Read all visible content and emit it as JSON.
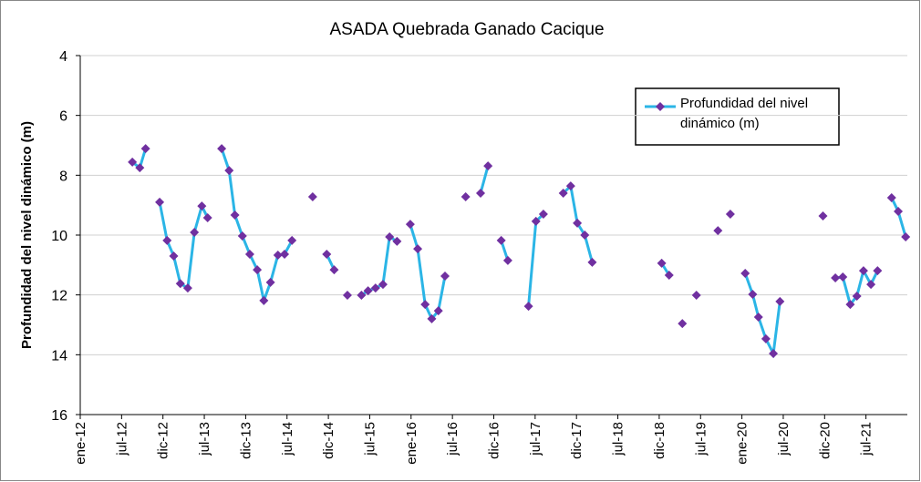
{
  "chart_data": {
    "type": "line",
    "title": "ASADA Quebrada Ganado Cacique",
    "y_label": "Profundidad del nivel dinámico (m)",
    "ylim": [
      16,
      4
    ],
    "yticks": [
      4,
      6,
      8,
      10,
      12,
      14,
      16
    ],
    "xlim": [
      2012,
      2022
    ],
    "xticks": [
      {
        "value": 2012,
        "label": "ene-12"
      },
      {
        "value": 2012.5,
        "label": "jul-12"
      },
      {
        "value": 2013,
        "label": "dic-12"
      },
      {
        "value": 2013.5,
        "label": "jul-13"
      },
      {
        "value": 2014,
        "label": "dic-13"
      },
      {
        "value": 2014.5,
        "label": "jul-14"
      },
      {
        "value": 2015,
        "label": "dic-14"
      },
      {
        "value": 2015.5,
        "label": "jul-15"
      },
      {
        "value": 2016,
        "label": "ene-16"
      },
      {
        "value": 2016.5,
        "label": "jul-16"
      },
      {
        "value": 2017,
        "label": "dic-16"
      },
      {
        "value": 2017.5,
        "label": "jul-17"
      },
      {
        "value": 2018,
        "label": "dic-17"
      },
      {
        "value": 2018.5,
        "label": "jul-18"
      },
      {
        "value": 2019,
        "label": "dic-18"
      },
      {
        "value": 2019.5,
        "label": "jul-19"
      },
      {
        "value": 2020,
        "label": "ene-20"
      },
      {
        "value": 2020.5,
        "label": "jul-20"
      },
      {
        "value": 2021,
        "label": "dic-20"
      },
      {
        "value": 2021.5,
        "label": "jul-21"
      }
    ],
    "grid": true,
    "legend": "top-right",
    "x": [
      2012.63,
      2012.72,
      2012.79,
      null,
      2012.96,
      2013.05,
      2013.13,
      2013.21,
      2013.3,
      2013.38,
      2013.47,
      2013.54,
      null,
      2013.71,
      2013.8,
      2013.87,
      2013.96,
      2014.05,
      2014.14,
      2014.22,
      2014.3,
      2014.39,
      2014.47,
      2014.56,
      null,
      2014.81,
      null,
      2014.98,
      2015.07,
      null,
      2015.23,
      null,
      2015.4,
      2015.48,
      2015.57,
      2015.66,
      2015.74,
      2015.83,
      null,
      2015.99,
      2016.08,
      2016.17,
      2016.25,
      2016.33,
      2016.41,
      null,
      2016.66,
      null,
      2016.84,
      2016.93,
      null,
      2017.09,
      2017.17,
      null,
      2017.42,
      2017.51,
      2017.6,
      null,
      2017.84,
      2017.93,
      2018.01,
      2018.1,
      2018.19,
      null,
      2019.03,
      2019.12,
      null,
      2019.28,
      null,
      2019.45,
      null,
      2019.71,
      null,
      2019.86,
      null,
      2020.04,
      2020.13,
      2020.2,
      2020.29,
      2020.38,
      2020.46,
      null,
      2020.98,
      null,
      2021.13,
      2021.22,
      2021.31,
      2021.39,
      2021.47,
      2021.56,
      2021.64,
      null,
      2021.81,
      2021.89,
      2021.98
    ],
    "series": [
      {
        "name": "Profundidad del nivel dinámico (m)",
        "color": "#2bb5e6",
        "marker_color": "#7030a0",
        "values": [
          7.56,
          7.75,
          7.11,
          null,
          8.9,
          10.18,
          10.7,
          11.62,
          11.77,
          9.91,
          9.03,
          9.42,
          null,
          7.11,
          7.84,
          9.33,
          10.03,
          10.64,
          11.16,
          12.19,
          11.58,
          10.67,
          10.64,
          10.18,
          null,
          8.72,
          null,
          10.64,
          11.16,
          null,
          12.01,
          null,
          12.01,
          11.86,
          11.77,
          11.65,
          10.06,
          10.21,
          null,
          9.64,
          10.46,
          12.32,
          12.8,
          12.53,
          11.37,
          null,
          8.72,
          null,
          8.6,
          7.69,
          null,
          10.18,
          10.85,
          null,
          12.38,
          9.54,
          9.3,
          null,
          8.6,
          8.36,
          9.6,
          10.0,
          10.91,
          null,
          10.94,
          11.34,
          null,
          12.96,
          null,
          12.01,
          null,
          9.85,
          null,
          9.3,
          null,
          11.28,
          11.98,
          12.74,
          13.47,
          13.96,
          12.22,
          null,
          9.36,
          null,
          11.43,
          11.4,
          12.32,
          12.04,
          11.19,
          11.65,
          11.19,
          null,
          8.75,
          9.21,
          10.06
        ]
      }
    ]
  }
}
